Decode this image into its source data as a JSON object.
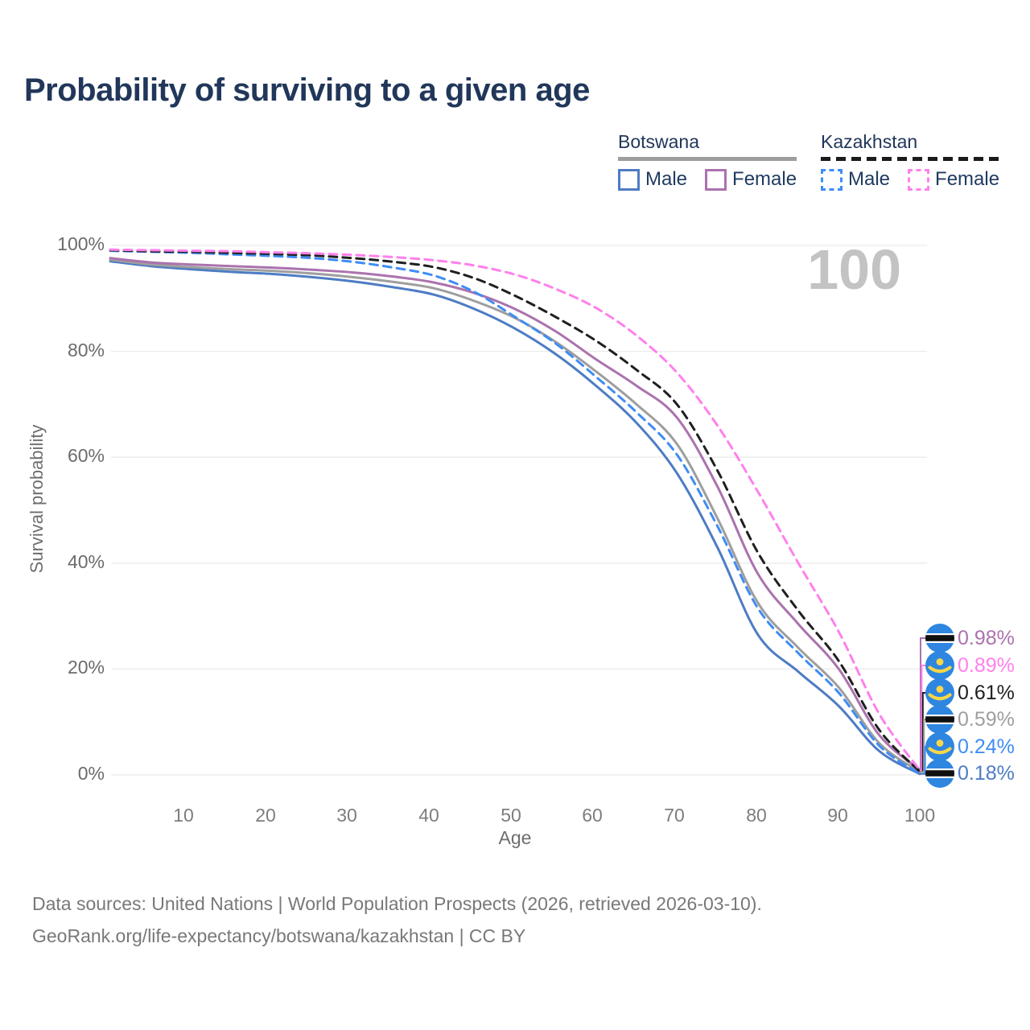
{
  "title": "Probability of surviving to a given age",
  "watermark_age": "100",
  "legend": {
    "groups": [
      {
        "id": "botswana",
        "label": "Botswana",
        "rule_style": "solid",
        "rule_color": "#9e9e9e",
        "items": [
          {
            "label": "Male",
            "color": "#4d7cc4",
            "dashed": false,
            "series": "botswana-male"
          },
          {
            "label": "Female",
            "color": "#ab72ae",
            "dashed": false,
            "series": "botswana-female"
          }
        ]
      },
      {
        "id": "kazakhstan",
        "label": "Kazakhstan",
        "rule_style": "dashed",
        "rule_color": "#1b1b1b",
        "items": [
          {
            "label": "Male",
            "color": "#3f8cf4",
            "dashed": true,
            "series": "kazakhstan-male"
          },
          {
            "label": "Female",
            "color": "#ff80ec",
            "dashed": true,
            "series": "kazakhstan-female"
          }
        ]
      }
    ]
  },
  "axes": {
    "y_title": "Survival probability",
    "x_title": "Age",
    "y_ticks": [
      {
        "label": "100%",
        "value": 100
      },
      {
        "label": "80%",
        "value": 80
      },
      {
        "label": "60%",
        "value": 60
      },
      {
        "label": "40%",
        "value": 40
      },
      {
        "label": "20%",
        "value": 20
      },
      {
        "label": "0%",
        "value": 0
      }
    ],
    "x_ticks": [
      10,
      20,
      30,
      40,
      50,
      60,
      70,
      80,
      90,
      100
    ]
  },
  "chart_data": {
    "type": "line",
    "title": "Probability of surviving to a given age",
    "xlabel": "Age",
    "ylabel": "Survival probability",
    "xlim": [
      0,
      100
    ],
    "ylim": [
      0,
      100
    ],
    "grid": "horizontal",
    "x": [
      0,
      5,
      10,
      15,
      20,
      25,
      30,
      35,
      40,
      45,
      50,
      55,
      60,
      65,
      70,
      75,
      80,
      85,
      90,
      95,
      100
    ],
    "series": [
      {
        "id": "botswana-male",
        "name": "Botswana Male",
        "color": "#4d7cc4",
        "dash": false,
        "values": [
          97.0,
          96.1,
          95.5,
          95.0,
          94.6,
          94.0,
          93.2,
          92.1,
          90.7,
          88.0,
          84.3,
          79.5,
          73.5,
          66.5,
          57.0,
          43.0,
          26.5,
          19.5,
          13.0,
          4.5,
          0.18
        ]
      },
      {
        "id": "botswana-total",
        "name": "Botswana",
        "color": "#9e9e9e",
        "dash": false,
        "values": [
          97.3,
          96.4,
          95.9,
          95.5,
          95.2,
          94.7,
          94.0,
          93.1,
          91.9,
          89.5,
          86.3,
          81.8,
          76.2,
          70.0,
          62.5,
          48.5,
          32.5,
          24.0,
          16.5,
          6.0,
          0.59
        ]
      },
      {
        "id": "botswana-female",
        "name": "Botswana Female",
        "color": "#ab72ae",
        "dash": false,
        "values": [
          97.6,
          96.8,
          96.4,
          96.1,
          95.8,
          95.4,
          94.9,
          94.1,
          93.0,
          91.0,
          88.0,
          83.8,
          78.5,
          73.5,
          67.5,
          54.5,
          38.0,
          28.5,
          20.0,
          7.5,
          0.98
        ]
      },
      {
        "id": "kazakhstan-male",
        "name": "Kazakhstan Male",
        "color": "#3f8cf4",
        "dash": true,
        "values": [
          99.0,
          98.8,
          98.6,
          98.3,
          98.0,
          97.6,
          96.9,
          95.8,
          94.3,
          91.2,
          86.5,
          81.5,
          75.2,
          68.5,
          60.5,
          47.0,
          31.5,
          23.0,
          15.5,
          5.5,
          0.24
        ]
      },
      {
        "id": "kazakhstan-total",
        "name": "Kazakhstan",
        "color": "#1f1f1f",
        "dash": true,
        "values": [
          99.1,
          98.9,
          98.8,
          98.6,
          98.4,
          98.1,
          97.6,
          96.9,
          95.9,
          93.8,
          90.5,
          86.5,
          82.0,
          76.5,
          70.0,
          57.5,
          42.0,
          31.0,
          21.5,
          8.5,
          0.61
        ]
      },
      {
        "id": "kazakhstan-female",
        "name": "Kazakhstan Female",
        "color": "#ff80ec",
        "dash": true,
        "values": [
          99.2,
          99.1,
          99.0,
          98.9,
          98.7,
          98.5,
          98.2,
          97.8,
          97.2,
          96.2,
          94.5,
          91.8,
          88.2,
          83.0,
          76.0,
          66.0,
          53.5,
          40.0,
          27.0,
          11.5,
          0.89
        ]
      }
    ],
    "end_labels": [
      {
        "text": "0.98%",
        "series": "botswana-female",
        "flag": "botswana"
      },
      {
        "text": "0.89%",
        "series": "kazakhstan-female",
        "flag": "kazakhstan"
      },
      {
        "text": "0.61%",
        "series": "kazakhstan-total",
        "flag": "kazakhstan"
      },
      {
        "text": "0.59%",
        "series": "botswana-total",
        "flag": "botswana"
      },
      {
        "text": "0.24%",
        "series": "kazakhstan-male",
        "flag": "kazakhstan"
      },
      {
        "text": "0.18%",
        "series": "botswana-male",
        "flag": "botswana"
      }
    ],
    "legend_position": "top-right"
  },
  "footer": {
    "line1": "Data sources: United Nations | World Population Prospects (2026, retrieved 2026-03-10).",
    "line2": "GeoRank.org/life-expectancy/botswana/kazakhstan | CC BY"
  }
}
